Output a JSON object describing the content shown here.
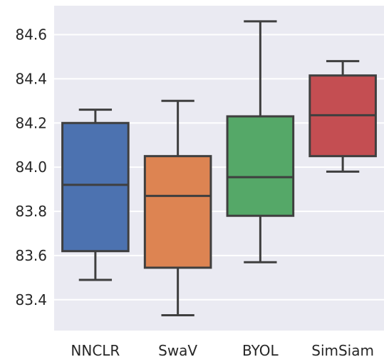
{
  "chart_data": {
    "type": "box",
    "categories": [
      "NNCLR",
      "SwaV",
      "BYOL",
      "SimSiam"
    ],
    "boxes": [
      {
        "category": "NNCLR",
        "whisker_low": 83.49,
        "q1": 83.62,
        "median": 83.92,
        "q3": 84.2,
        "whisker_high": 84.26,
        "color": "#4c72b0"
      },
      {
        "category": "SwaV",
        "whisker_low": 83.33,
        "q1": 83.545,
        "median": 83.87,
        "q3": 84.05,
        "whisker_high": 84.3,
        "color": "#dd8452"
      },
      {
        "category": "BYOL",
        "whisker_low": 83.57,
        "q1": 83.78,
        "median": 83.955,
        "q3": 84.23,
        "whisker_high": 84.66,
        "color": "#55a868"
      },
      {
        "category": "SimSiam",
        "whisker_low": 83.98,
        "q1": 84.05,
        "median": 84.235,
        "q3": 84.415,
        "whisker_high": 84.48,
        "color": "#c44e52"
      }
    ],
    "y_ticks": [
      "83.4",
      "83.6",
      "83.8",
      "84.0",
      "84.2",
      "84.4",
      "84.6"
    ],
    "ylim": [
      83.2604,
      84.7308
    ],
    "grid": true,
    "background_color": "#eaeaf2",
    "title": "",
    "xlabel": "",
    "ylabel": ""
  }
}
